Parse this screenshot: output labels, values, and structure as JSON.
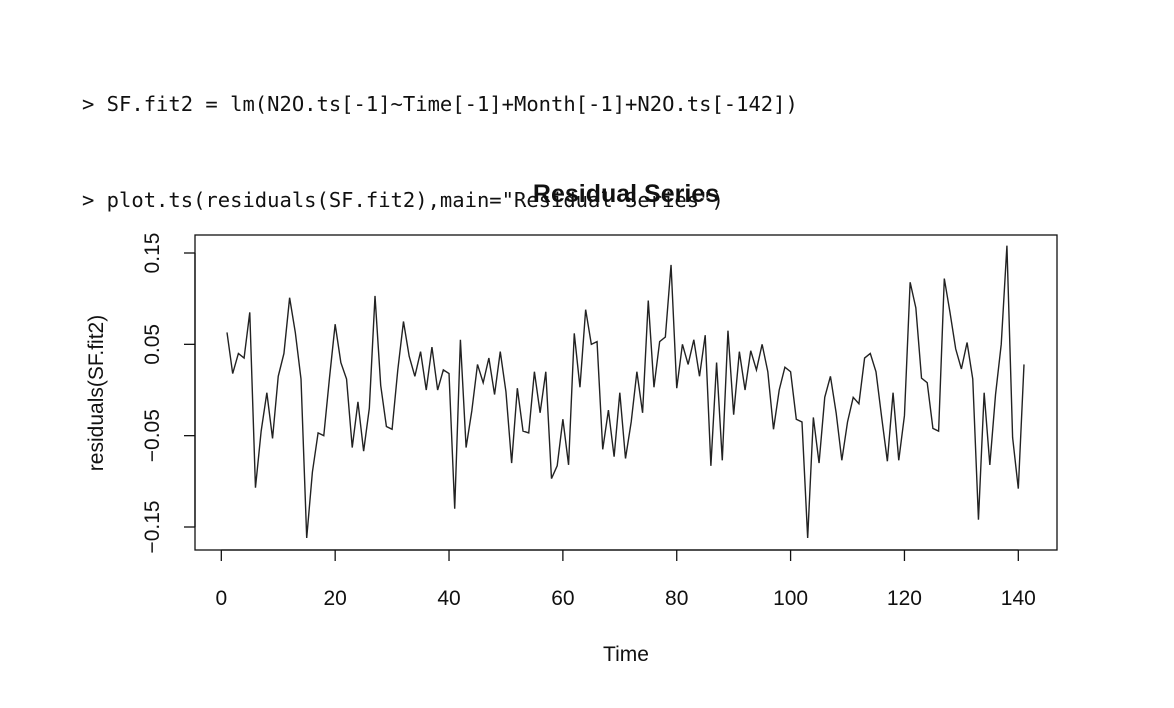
{
  "console": {
    "lines": [
      "> SF.fit2 = lm(N2O.ts[-1]~Time[-1]+Month[-1]+N2O.ts[-142])",
      "> plot.ts(residuals(SF.fit2),main=\"Residual Series\")"
    ]
  },
  "chart_data": {
    "type": "line",
    "title": "Residual Series",
    "xlabel": "Time",
    "ylabel": "residuals(SF.fit2)",
    "xlim": [
      1,
      141
    ],
    "ylim": [
      -0.165,
      0.165
    ],
    "x_ticks": [
      0,
      20,
      40,
      60,
      80,
      100,
      120,
      140
    ],
    "x_tick_labels": [
      "0",
      "20",
      "40",
      "60",
      "80",
      "100",
      "120",
      "140"
    ],
    "y_ticks": [
      -0.15,
      -0.05,
      0.05,
      0.15
    ],
    "y_tick_labels": [
      "−0.15",
      "−0.05",
      "0.05",
      "0.15"
    ],
    "grid": false,
    "legend": "none",
    "line_color": "#222222",
    "series": [
      {
        "x_start": 1,
        "values": [
          0.063,
          0.018,
          0.04,
          0.035,
          0.085,
          -0.107,
          -0.045,
          -0.003,
          -0.053,
          0.015,
          0.04,
          0.101,
          0.063,
          0.012,
          -0.162,
          -0.09,
          -0.047,
          -0.05,
          0.013,
          0.072,
          0.03,
          0.012,
          -0.063,
          -0.013,
          -0.067,
          -0.02,
          0.103,
          0.005,
          -0.04,
          -0.043,
          0.022,
          0.075,
          0.037,
          0.015,
          0.042,
          0.0,
          0.047,
          0.0,
          0.022,
          0.018,
          -0.13,
          0.055,
          -0.063,
          -0.023,
          0.028,
          0.008,
          0.035,
          -0.005,
          0.042,
          -0.002,
          -0.08,
          0.002,
          -0.045,
          -0.047,
          0.02,
          -0.025,
          0.02,
          -0.097,
          -0.083,
          -0.032,
          -0.082,
          0.062,
          0.003,
          0.088,
          0.05,
          0.053,
          -0.065,
          -0.022,
          -0.073,
          -0.003,
          -0.075,
          -0.035,
          0.02,
          -0.025,
          0.098,
          0.003,
          0.053,
          0.058,
          0.137,
          0.002,
          0.05,
          0.028,
          0.055,
          0.015,
          0.06,
          -0.083,
          0.03,
          -0.077,
          0.065,
          -0.027,
          0.042,
          0.0,
          0.043,
          0.022,
          0.05,
          0.02,
          -0.043,
          0.0,
          0.025,
          0.02,
          -0.032,
          -0.035,
          -0.162,
          -0.03,
          -0.08,
          -0.008,
          0.015,
          -0.025,
          -0.077,
          -0.035,
          -0.008,
          -0.015,
          0.035,
          0.04,
          0.02,
          -0.03,
          -0.078,
          -0.003,
          -0.077,
          -0.028,
          0.118,
          0.09,
          0.013,
          0.008,
          -0.042,
          -0.045,
          0.122,
          0.085,
          0.045,
          0.023,
          0.052,
          0.012,
          -0.142,
          -0.003,
          -0.082,
          -0.005,
          0.05,
          0.158,
          -0.052,
          -0.108,
          0.028
        ]
      }
    ]
  }
}
